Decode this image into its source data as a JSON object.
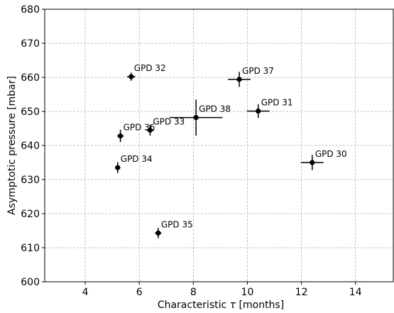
{
  "chart_data": {
    "type": "scatter",
    "title": "",
    "xlabel_prefix": "Characteristic ",
    "xlabel_symbol": "τ",
    "xlabel_suffix": " [months]",
    "ylabel": "Asymptotic pressure [mbar]",
    "xlim": [
      2.5,
      15.4
    ],
    "ylim": [
      600,
      680
    ],
    "xticks": [
      4,
      6,
      8,
      10,
      12,
      14
    ],
    "yticks": [
      600,
      610,
      620,
      630,
      640,
      650,
      660,
      670,
      680
    ],
    "grid": true,
    "marker_color": "#000000",
    "points": [
      {
        "label": "GPD 32",
        "x": 5.7,
        "y": 660.2,
        "xerr": 0.15,
        "yerr": 1.2
      },
      {
        "label": "GPD 37",
        "x": 9.7,
        "y": 659.4,
        "xerr": 0.42,
        "yerr": 2.2
      },
      {
        "label": "GPD 31",
        "x": 10.4,
        "y": 650.1,
        "xerr": 0.42,
        "yerr": 2.0
      },
      {
        "label": "GPD 38",
        "x": 8.1,
        "y": 648.2,
        "xerr": 0.98,
        "yerr": 5.3
      },
      {
        "label": "GPD 36",
        "x": 5.3,
        "y": 642.8,
        "xerr": 0.12,
        "yerr": 1.8
      },
      {
        "label": "GPD 33",
        "x": 6.4,
        "y": 644.5,
        "xerr": 0.15,
        "yerr": 1.6
      },
      {
        "label": "GPD 30",
        "x": 12.4,
        "y": 635.0,
        "xerr": 0.42,
        "yerr": 2.2
      },
      {
        "label": "GPD 34",
        "x": 5.2,
        "y": 633.5,
        "xerr": 0.1,
        "yerr": 1.6
      },
      {
        "label": "GPD 35",
        "x": 6.7,
        "y": 614.3,
        "xerr": 0.12,
        "yerr": 1.5
      }
    ]
  }
}
